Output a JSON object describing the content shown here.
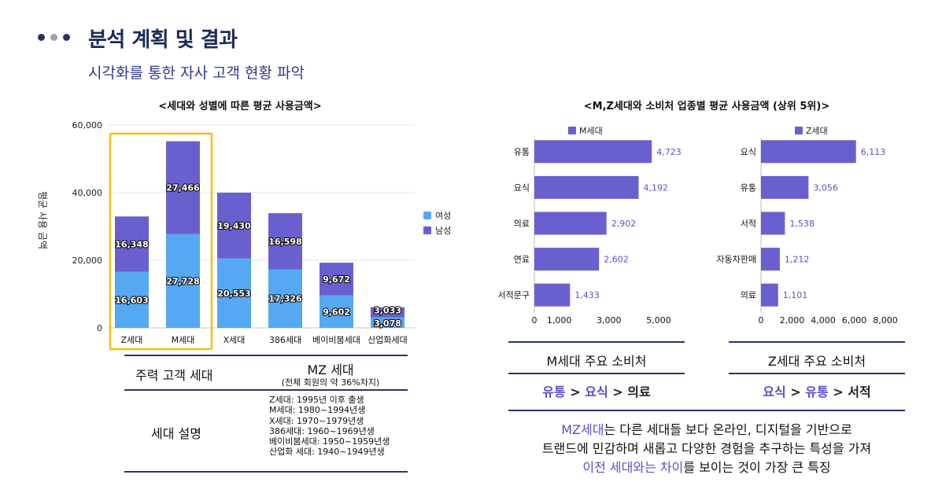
{
  "header": {
    "title": "분석 계획 및 결과",
    "subtitle": "시각화를 통한 자사 고객 현황 파악",
    "dot_colors": [
      "#27356b",
      "#9aa0b8",
      "#27356b"
    ]
  },
  "left_chart": {
    "chart_data": {
      "type": "bar",
      "stacked": true,
      "title": "<세대와 성별에 따른 평균 사용금액>",
      "ylabel": "평균 사용 금액",
      "categories": [
        "Z세대",
        "M세대",
        "X세대",
        "386세대",
        "베이비붐세대",
        "산업화세대"
      ],
      "series": [
        {
          "name": "여성",
          "color": "#55a8f2",
          "values": [
            16603,
            27728,
            20553,
            17326,
            9602,
            3078
          ],
          "labels": [
            "16,603",
            "27,728",
            "20,553",
            "17,326",
            "9,602",
            "3,078"
          ]
        },
        {
          "name": "남성",
          "color": "#6a5fcf",
          "values": [
            16348,
            27466,
            19430,
            16598,
            9672,
            3033
          ],
          "labels": [
            "16,348",
            "27,466",
            "19,430",
            "16,598",
            "9,672",
            "3,033"
          ]
        }
      ],
      "ylim": [
        0,
        60000
      ],
      "yticks": [
        0,
        20000,
        40000,
        60000
      ],
      "ytick_labels": [
        "0",
        "20,000",
        "40,000",
        "60,000"
      ],
      "legend_position": "right",
      "highlight_categories": [
        "Z세대",
        "M세대"
      ]
    }
  },
  "right_charts": {
    "title": "<M,Z세대와 소비처 업종별 평균 사용금액 (상위 5위)>",
    "chart_data": [
      {
        "type": "bar",
        "orientation": "horizontal",
        "legend": "M세대",
        "color": "#6a5fcf",
        "categories": [
          "유통",
          "요식",
          "의료",
          "연료",
          "서적문구"
        ],
        "values": [
          4723,
          4192,
          2902,
          2602,
          1433
        ],
        "value_labels": [
          "4,723",
          "4,192",
          "2,902",
          "2,602",
          "1,433"
        ],
        "xlim": [
          0,
          5000
        ],
        "xticks": [
          0,
          1000,
          3000,
          5000
        ],
        "xtick_labels": [
          "0",
          "1,000",
          "3,000",
          "5,000"
        ]
      },
      {
        "type": "bar",
        "orientation": "horizontal",
        "legend": "Z세대",
        "color": "#6a5fcf",
        "categories": [
          "요식",
          "유통",
          "서적",
          "자동차판매",
          "의료"
        ],
        "values": [
          6113,
          3056,
          1538,
          1212,
          1101
        ],
        "value_labels": [
          "6,113",
          "3,056",
          "1,538",
          "1,212",
          "1,101"
        ],
        "xlim": [
          0,
          8000
        ],
        "xticks": [
          0,
          2000,
          4000,
          6000,
          8000
        ],
        "xtick_labels": [
          "0",
          "2,000",
          "4,000",
          "6,000",
          "8,000"
        ]
      }
    ]
  },
  "summary_table": {
    "row1_label": "주력 고객 세대",
    "row1_value": "MZ 세대",
    "row1_note": "(전체 회원의 약 36%차지)",
    "row2_label": "세대 설명",
    "descriptions": [
      "Z세대: 1995년 이후 출생",
      "M세대: 1980~1994년생",
      "X세대: 1970~1979년생",
      "386세대: 1960~1969년생",
      "베이비붐세대: 1950~1959년생",
      "산업화 세대: 1940~1949년생"
    ]
  },
  "consumption": {
    "m_title": "M세대 주요 소비처",
    "m_path": [
      "유통",
      "요식",
      "의료"
    ],
    "z_title": "Z세대 주요 소비처",
    "z_path": [
      "요식",
      "유통",
      "서적"
    ],
    "arrow": ">"
  },
  "bottom_note": {
    "line1_highlight": "MZ세대",
    "line1_rest": "는 다른 세대들 보다 온라인, 디지털을 기반으로",
    "line2": "트랜드에 민감하며 새롭고 다양한 경험을 추구하는 특성을 가져",
    "line3_highlight": "이전 세대와는 차이",
    "line3_rest": "를 보이는 것이 가장 큰 특징"
  }
}
